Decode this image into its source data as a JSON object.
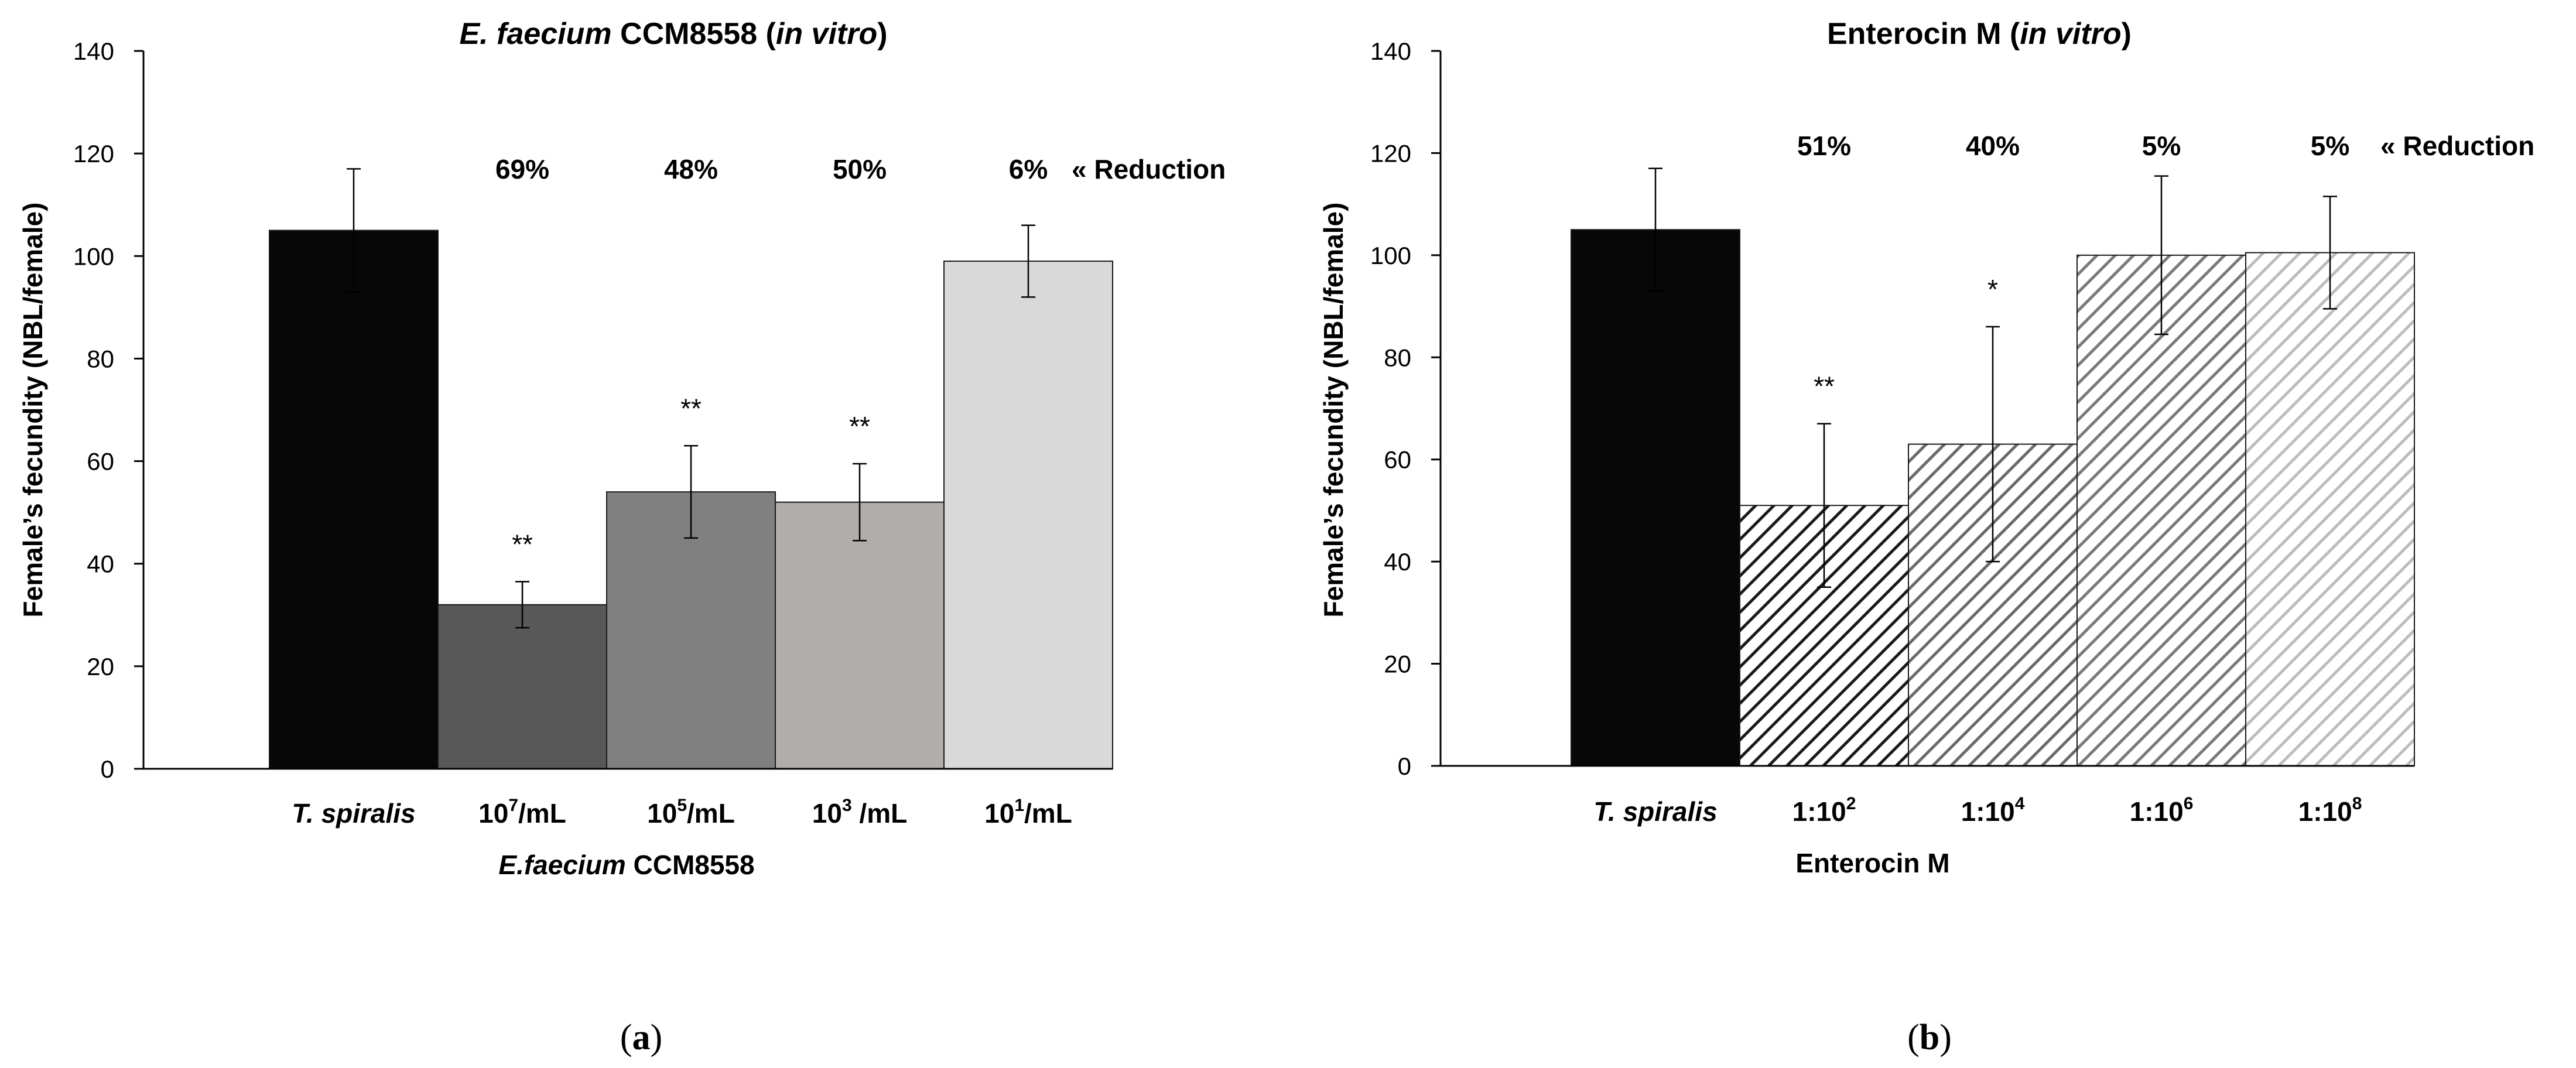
{
  "chart_data": [
    {
      "panel": "a",
      "panel_label": "(a)",
      "type": "bar",
      "title": "E. faecium CCM8558 (in vitro)",
      "title_parts": [
        {
          "text": "E. faecium",
          "italic": true
        },
        {
          "text": " CCM8558 (",
          "italic": false
        },
        {
          "text": "in vitro",
          "italic": true
        },
        {
          "text": ")",
          "italic": false
        }
      ],
      "ylabel": "Female’s fecundity (NBL/female)",
      "xlabel_parts": [
        {
          "text": "E.faecium",
          "italic": true
        },
        {
          "text": " CCM8558",
          "italic": false
        }
      ],
      "ylim": [
        0,
        140
      ],
      "yticks": [
        0,
        20,
        40,
        60,
        80,
        100,
        120,
        140
      ],
      "categories": [
        {
          "label": "T. spiralis",
          "italic": true,
          "base": "",
          "sup": "",
          "suffix": ""
        },
        {
          "label": "10^7/mL",
          "italic": false,
          "base": "10",
          "sup": "7",
          "suffix": "/mL"
        },
        {
          "label": "10^5/mL",
          "italic": false,
          "base": "10",
          "sup": "5",
          "suffix": "/mL"
        },
        {
          "label": "10^3 /mL",
          "italic": false,
          "base": "10",
          "sup": "3",
          "suffix": " /mL"
        },
        {
          "label": "10^1/mL",
          "italic": false,
          "base": "10",
          "sup": "1",
          "suffix": "/mL"
        }
      ],
      "values": [
        105,
        32,
        54,
        52,
        99
      ],
      "errors": [
        12,
        4.5,
        9,
        7.5,
        7
      ],
      "colors": [
        "#070707",
        "#585858",
        "#808080",
        "#b1adab",
        "#d9d9d9"
      ],
      "patterns": [
        "solid",
        "solid",
        "solid",
        "solid",
        "solid"
      ],
      "significance": [
        "",
        "**",
        "**",
        "**",
        ""
      ],
      "reduction": [
        "",
        "69%",
        "48%",
        "50%",
        "6%"
      ],
      "reduction_label": "« Reduction"
    },
    {
      "panel": "b",
      "panel_label": "(b)",
      "type": "bar",
      "title": "Enterocin M (in vitro)",
      "title_parts": [
        {
          "text": "Enterocin M (",
          "italic": false
        },
        {
          "text": "in vitro",
          "italic": true
        },
        {
          "text": ")",
          "italic": false
        }
      ],
      "ylabel": "Female’s fecundity (NBL/female)",
      "xlabel_parts": [
        {
          "text": "Enterocin M",
          "italic": false
        }
      ],
      "ylim": [
        0,
        140
      ],
      "yticks": [
        0,
        20,
        40,
        60,
        80,
        100,
        120,
        140
      ],
      "categories": [
        {
          "label": "T. spiralis",
          "italic": true,
          "base": "",
          "sup": "",
          "suffix": ""
        },
        {
          "label": "1:10^2",
          "italic": false,
          "base": "1:10",
          "sup": "2",
          "suffix": ""
        },
        {
          "label": "1:10^4",
          "italic": false,
          "base": "1:10",
          "sup": "4",
          "suffix": ""
        },
        {
          "label": "1:10^6",
          "italic": false,
          "base": "1:10",
          "sup": "6",
          "suffix": ""
        },
        {
          "label": "1:10^8",
          "italic": false,
          "base": "1:10",
          "sup": "8",
          "suffix": ""
        }
      ],
      "values": [
        105,
        51,
        63,
        100,
        100.5
      ],
      "errors": [
        12,
        16,
        23,
        15.5,
        11
      ],
      "colors": [
        "#070707",
        "#1a1a1a",
        "#6a6a6a",
        "#7a7a7a",
        "#bdbdbd"
      ],
      "patterns": [
        "solid",
        "hatch",
        "hatch",
        "hatch",
        "hatch"
      ],
      "significance": [
        "",
        "**",
        "*",
        "",
        ""
      ],
      "reduction": [
        "",
        "51%",
        "40%",
        "5%",
        "5%"
      ],
      "reduction_label": "« Reduction"
    }
  ]
}
